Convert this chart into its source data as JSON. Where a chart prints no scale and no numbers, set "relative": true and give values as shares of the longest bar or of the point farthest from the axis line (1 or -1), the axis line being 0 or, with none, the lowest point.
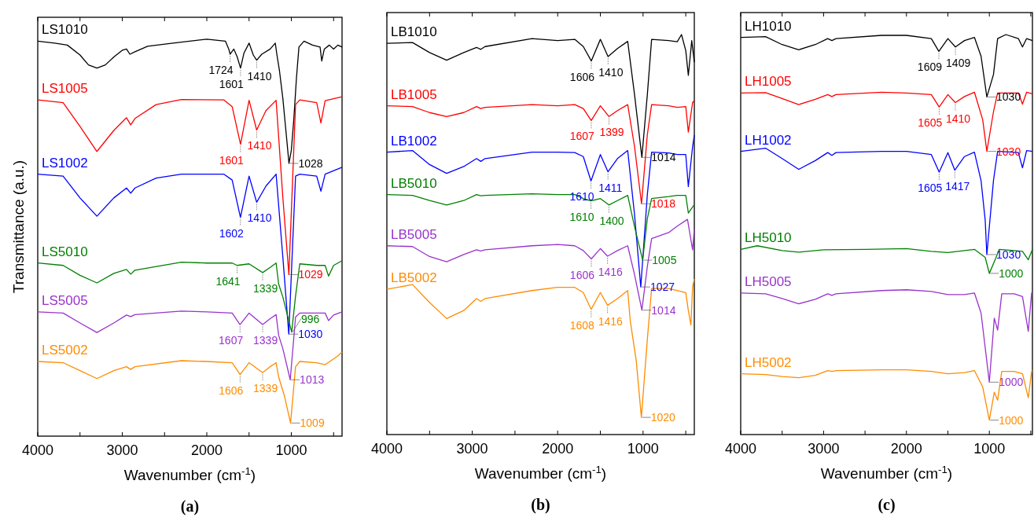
{
  "chart_data": [
    {
      "type": "line",
      "title": "(a)",
      "xlabel": "Wavenumber (cm$^{-1}$)",
      "ylabel": "Transmittance (a.u.)",
      "relative": true,
      "xlim": [
        4000,
        400
      ],
      "xticks": [
        4000,
        {
          "value": 3500,
          "label": null
        },
        3000,
        {
          "value": 2500,
          "label": null
        },
        2000,
        {
          "value": 1500,
          "label": null
        },
        1000,
        {
          "value": 500,
          "label": null
        }
      ],
      "series": [
        {
          "name": "LS1010",
          "color": "#000000",
          "x": [
            4000,
            3800,
            3650,
            3500,
            3400,
            3300,
            3200,
            3100,
            3000,
            2950,
            2910,
            2850,
            2700,
            2400,
            2000,
            1780,
            1740,
            1724,
            1680,
            1640,
            1601,
            1560,
            1500,
            1450,
            1410,
            1350,
            1250,
            1190,
            1170,
            1140,
            1100,
            1060,
            1028,
            1000,
            970,
            940,
            910,
            850,
            750,
            660,
            640,
            610,
            550,
            500,
            450,
            400
          ],
          "values": [
            0.995,
            0.99,
            0.985,
            0.96,
            0.935,
            0.927,
            0.935,
            0.955,
            0.972,
            0.975,
            0.962,
            0.968,
            0.982,
            0.99,
            1.0,
            0.995,
            0.975,
            0.962,
            0.975,
            0.955,
            0.927,
            0.965,
            0.99,
            0.96,
            0.947,
            0.962,
            0.975,
            0.99,
            0.96,
            0.92,
            0.85,
            0.76,
            0.687,
            0.72,
            0.8,
            0.9,
            0.98,
            0.995,
            0.985,
            0.98,
            0.945,
            0.975,
            0.985,
            0.975,
            0.985,
            0.98
          ]
        },
        {
          "name": "LS1005",
          "color": "#ff0000",
          "x": [
            4000,
            3700,
            3500,
            3300,
            3100,
            2950,
            2900,
            2850,
            2600,
            2300,
            1800,
            1700,
            1601,
            1500,
            1410,
            1300,
            1180,
            1100,
            1029,
            950,
            900,
            700,
            650,
            600,
            400
          ],
          "values": [
            0.847,
            0.84,
            0.78,
            0.717,
            0.77,
            0.802,
            0.784,
            0.8,
            0.835,
            0.848,
            0.847,
            0.83,
            0.735,
            0.846,
            0.771,
            0.82,
            0.846,
            0.6,
            0.407,
            0.835,
            0.847,
            0.84,
            0.789,
            0.845,
            0.855
          ]
        },
        {
          "name": "LS1002",
          "color": "#0000ff",
          "x": [
            4000,
            3700,
            3500,
            3300,
            3100,
            2950,
            2900,
            2850,
            2600,
            2300,
            1800,
            1700,
            1602,
            1500,
            1410,
            1300,
            1180,
            1100,
            1030,
            950,
            900,
            700,
            650,
            600,
            400
          ],
          "values": [
            0.66,
            0.655,
            0.6,
            0.554,
            0.6,
            0.625,
            0.612,
            0.625,
            0.65,
            0.66,
            0.66,
            0.645,
            0.551,
            0.655,
            0.589,
            0.63,
            0.66,
            0.45,
            0.257,
            0.655,
            0.66,
            0.655,
            0.617,
            0.66,
            0.677
          ]
        },
        {
          "name": "LS5010",
          "color": "#008000",
          "x": [
            4000,
            3700,
            3500,
            3300,
            3100,
            2950,
            2900,
            2850,
            2300,
            2000,
            1700,
            1641,
            1500,
            1339,
            1250,
            1180,
            1150,
            1100,
            996,
            950,
            900,
            700,
            600,
            560,
            500,
            400
          ],
          "values": [
            0.436,
            0.43,
            0.405,
            0.386,
            0.41,
            0.42,
            0.408,
            0.418,
            0.438,
            0.436,
            0.436,
            0.43,
            0.434,
            0.412,
            0.425,
            0.436,
            0.383,
            0.35,
            0.262,
            0.353,
            0.434,
            0.43,
            0.43,
            0.403,
            0.43,
            0.442
          ]
        },
        {
          "name": "LS5005",
          "color": "#9933cc",
          "x": [
            4000,
            3700,
            3500,
            3300,
            3100,
            2950,
            2900,
            2850,
            2300,
            2000,
            1700,
            1607,
            1500,
            1339,
            1250,
            1180,
            1150,
            1100,
            1013,
            950,
            900,
            700,
            600,
            560,
            500,
            400
          ],
          "values": [
            0.313,
            0.31,
            0.285,
            0.261,
            0.285,
            0.305,
            0.301,
            0.306,
            0.315,
            0.313,
            0.31,
            0.281,
            0.31,
            0.281,
            0.296,
            0.306,
            0.254,
            0.22,
            0.142,
            0.3,
            0.31,
            0.31,
            0.31,
            0.291,
            0.305,
            0.313
          ]
        },
        {
          "name": "LS5002",
          "color": "#ff8c00",
          "x": [
            4000,
            3700,
            3500,
            3300,
            3100,
            2950,
            2900,
            2850,
            2300,
            2000,
            1700,
            1606,
            1500,
            1339,
            1250,
            1180,
            1150,
            1080,
            1009,
            950,
            900,
            700,
            600,
            450,
            400
          ],
          "values": [
            0.188,
            0.185,
            0.165,
            0.145,
            0.165,
            0.175,
            0.168,
            0.175,
            0.19,
            0.188,
            0.185,
            0.155,
            0.185,
            0.16,
            0.175,
            0.185,
            0.149,
            0.1,
            0.033,
            0.175,
            0.188,
            0.185,
            0.18,
            0.202,
            0.212
          ]
        }
      ],
      "annotations": [
        {
          "text": "1724",
          "x": 1724,
          "y": 0.962
        },
        {
          "text": "1601",
          "x": 1601,
          "y": 0.927
        },
        {
          "text": "1410",
          "x": 1410,
          "y": 0.947
        },
        {
          "text": "1028",
          "x": 1028,
          "y": 0.687
        },
        {
          "text": "1601",
          "x": 1601,
          "y": 0.735
        },
        {
          "text": "1410",
          "x": 1410,
          "y": 0.771
        },
        {
          "text": "1029",
          "x": 1029,
          "y": 0.407
        },
        {
          "text": "1602",
          "x": 1602,
          "y": 0.551
        },
        {
          "text": "1410",
          "x": 1410,
          "y": 0.589
        },
        {
          "text": "1030",
          "x": 1030,
          "y": 0.257
        },
        {
          "text": "1641",
          "x": 1641,
          "y": 0.43
        },
        {
          "text": "1339",
          "x": 1339,
          "y": 0.412
        },
        {
          "text": "996",
          "x": 996,
          "y": 0.262
        },
        {
          "text": "1607",
          "x": 1607,
          "y": 0.281
        },
        {
          "text": "1339",
          "x": 1339,
          "y": 0.281
        },
        {
          "text": "1013",
          "x": 1013,
          "y": 0.142
        },
        {
          "text": "1606",
          "x": 1606,
          "y": 0.155
        },
        {
          "text": "1339",
          "x": 1339,
          "y": 0.16
        },
        {
          "text": "1009",
          "x": 1009,
          "y": 0.033
        }
      ]
    },
    {
      "type": "line",
      "title": "(b)",
      "xlabel": "Wavenumber (cm$^{-1}$)",
      "relative": true,
      "xlim": [
        4000,
        400
      ],
      "xticks": [
        4000,
        {
          "value": 3500,
          "label": null
        },
        3000,
        {
          "value": 2500,
          "label": null
        },
        2000,
        {
          "value": 1500,
          "label": null
        },
        1000,
        {
          "value": 500,
          "label": null
        }
      ],
      "series": [
        {
          "name": "LB1010",
          "color": "#000000",
          "x": [
            4000,
            3700,
            3500,
            3300,
            3100,
            2950,
            2900,
            2850,
            2300,
            2000,
            1800,
            1700,
            1606,
            1500,
            1410,
            1300,
            1180,
            1100,
            1014,
            950,
            900,
            700,
            600,
            550,
            500,
            470,
            430,
            400
          ],
          "values": [
            0.978,
            0.98,
            0.955,
            0.936,
            0.955,
            0.968,
            0.963,
            0.97,
            0.99,
            0.985,
            0.988,
            0.97,
            0.934,
            0.988,
            0.945,
            0.965,
            0.983,
            0.85,
            0.693,
            0.85,
            0.988,
            0.985,
            0.982,
            1.0,
            0.96,
            0.898,
            0.985,
            0.931
          ]
        },
        {
          "name": "LB1005",
          "color": "#ff0000",
          "x": [
            4000,
            3700,
            3500,
            3300,
            3100,
            2950,
            2900,
            2850,
            2300,
            2000,
            1800,
            1700,
            1607,
            1500,
            1399,
            1300,
            1180,
            1100,
            1018,
            950,
            900,
            700,
            600,
            500,
            470,
            420,
            400
          ],
          "values": [
            0.822,
            0.82,
            0.805,
            0.795,
            0.805,
            0.82,
            0.815,
            0.818,
            0.825,
            0.822,
            0.825,
            0.815,
            0.785,
            0.822,
            0.795,
            0.81,
            0.825,
            0.72,
            0.577,
            0.75,
            0.825,
            0.822,
            0.818,
            0.82,
            0.756,
            0.83,
            0.835
          ]
        },
        {
          "name": "LB1002",
          "color": "#0000ff",
          "x": [
            4000,
            3700,
            3500,
            3300,
            3100,
            2950,
            2900,
            2850,
            2300,
            2000,
            1800,
            1700,
            1610,
            1500,
            1411,
            1300,
            1180,
            1100,
            1027,
            950,
            900,
            700,
            600,
            500,
            470,
            420,
            400
          ],
          "values": [
            0.706,
            0.71,
            0.675,
            0.653,
            0.67,
            0.69,
            0.683,
            0.69,
            0.706,
            0.706,
            0.705,
            0.695,
            0.634,
            0.7,
            0.657,
            0.69,
            0.71,
            0.55,
            0.369,
            0.6,
            0.706,
            0.704,
            0.7,
            0.7,
            0.62,
            0.72,
            0.749
          ]
        },
        {
          "name": "LB5010",
          "color": "#008000",
          "x": [
            4000,
            3700,
            3500,
            3300,
            3100,
            2950,
            2900,
            2850,
            2300,
            2000,
            1800,
            1700,
            1610,
            1500,
            1400,
            1300,
            1180,
            1100,
            1005,
            950,
            900,
            700,
            600,
            500,
            470,
            400
          ],
          "values": [
            0.6,
            0.598,
            0.585,
            0.574,
            0.585,
            0.6,
            0.597,
            0.598,
            0.602,
            0.6,
            0.6,
            0.59,
            0.584,
            0.59,
            0.574,
            0.585,
            0.598,
            0.52,
            0.436,
            0.54,
            0.59,
            0.595,
            0.598,
            0.598,
            0.554,
            0.575
          ]
        },
        {
          "name": "LB5005",
          "color": "#9933cc",
          "x": [
            4000,
            3700,
            3500,
            3300,
            3100,
            2950,
            2900,
            2850,
            2300,
            2000,
            1800,
            1700,
            1606,
            1500,
            1416,
            1300,
            1180,
            1100,
            1014,
            950,
            900,
            700,
            600,
            480,
            420,
            400
          ],
          "values": [
            0.472,
            0.47,
            0.445,
            0.432,
            0.45,
            0.462,
            0.459,
            0.462,
            0.472,
            0.475,
            0.472,
            0.46,
            0.439,
            0.465,
            0.446,
            0.46,
            0.472,
            0.4,
            0.311,
            0.42,
            0.49,
            0.505,
            0.521,
            0.538,
            0.462,
            0.515
          ]
        },
        {
          "name": "LB5002",
          "color": "#ff8c00",
          "x": [
            4000,
            3700,
            3500,
            3300,
            3100,
            2950,
            2900,
            2850,
            2300,
            2000,
            1800,
            1700,
            1608,
            1500,
            1416,
            1300,
            1180,
            1150,
            1080,
            1020,
            950,
            900,
            700,
            500,
            470,
            440,
            420,
            400
          ],
          "values": [
            0.363,
            0.375,
            0.33,
            0.29,
            0.31,
            0.34,
            0.333,
            0.34,
            0.36,
            0.368,
            0.368,
            0.355,
            0.313,
            0.355,
            0.323,
            0.34,
            0.36,
            0.284,
            0.185,
            0.043,
            0.238,
            0.365,
            0.365,
            0.355,
            0.31,
            0.274,
            0.37,
            0.389
          ]
        }
      ],
      "annotations": [
        {
          "text": "1606",
          "x": 1606,
          "y": 0.934
        },
        {
          "text": "1410",
          "x": 1410,
          "y": 0.945
        },
        {
          "text": "1014",
          "x": 1014,
          "y": 0.693
        },
        {
          "text": "1607",
          "x": 1607,
          "y": 0.785
        },
        {
          "text": "1399",
          "x": 1399,
          "y": 0.795
        },
        {
          "text": "1018",
          "x": 1018,
          "y": 0.577
        },
        {
          "text": "1610",
          "x": 1610,
          "y": 0.634
        },
        {
          "text": "1411",
          "x": 1411,
          "y": 0.657
        },
        {
          "text": "1027",
          "x": 1027,
          "y": 0.369
        },
        {
          "text": "1610",
          "x": 1610,
          "y": 0.584
        },
        {
          "text": "1400",
          "x": 1400,
          "y": 0.574
        },
        {
          "text": "1005",
          "x": 1005,
          "y": 0.436
        },
        {
          "text": "1606",
          "x": 1606,
          "y": 0.439
        },
        {
          "text": "1416",
          "x": 1416,
          "y": 0.446
        },
        {
          "text": "1014",
          "x": 1014,
          "y": 0.311
        },
        {
          "text": "1608",
          "x": 1608,
          "y": 0.313
        },
        {
          "text": "1416",
          "x": 1416,
          "y": 0.323
        },
        {
          "text": "1020",
          "x": 1020,
          "y": 0.043
        }
      ]
    },
    {
      "type": "line",
      "title": "(c)",
      "xlabel": "Wavenumber (cm$^{-1}$)",
      "relative": true,
      "xlim": [
        4000,
        480
      ],
      "xticks": [
        4000,
        {
          "value": 3500,
          "label": null
        },
        3000,
        {
          "value": 2500,
          "label": null
        },
        2000,
        {
          "value": 1500,
          "label": null
        },
        1000,
        {
          "value": 500,
          "label": null
        }
      ],
      "series": [
        {
          "name": "LH1010",
          "color": "#000000",
          "x": [
            4000,
            3700,
            3500,
            3300,
            3100,
            2950,
            2900,
            2850,
            2300,
            2000,
            1700,
            1609,
            1500,
            1409,
            1300,
            1180,
            1100,
            1030,
            950,
            900,
            800,
            650,
            600,
            550,
            480
          ],
          "values": [
            0.993,
            0.995,
            0.975,
            0.962,
            0.975,
            0.99,
            0.985,
            0.99,
            0.998,
            0.998,
            0.99,
            0.958,
            0.99,
            0.969,
            0.985,
            0.993,
            0.946,
            0.844,
            0.9,
            0.99,
            1.0,
            0.99,
            0.969,
            0.99,
            0.985
          ]
        },
        {
          "name": "LH1005",
          "color": "#ff0000",
          "x": [
            4000,
            3700,
            3500,
            3300,
            3100,
            2950,
            2900,
            2850,
            2300,
            2000,
            1700,
            1605,
            1500,
            1410,
            1300,
            1180,
            1080,
            1030,
            950,
            900,
            650,
            600,
            550,
            480
          ],
          "values": [
            0.854,
            0.855,
            0.84,
            0.825,
            0.838,
            0.85,
            0.845,
            0.85,
            0.856,
            0.854,
            0.85,
            0.819,
            0.85,
            0.83,
            0.845,
            0.856,
            0.787,
            0.708,
            0.807,
            0.854,
            0.854,
            0.826,
            0.856,
            0.852
          ]
        },
        {
          "name": "LH1002",
          "color": "#0000ff",
          "x": [
            4000,
            3700,
            3500,
            3300,
            3100,
            2950,
            2900,
            2850,
            2300,
            2000,
            1700,
            1605,
            1500,
            1417,
            1300,
            1180,
            1100,
            1050,
            1030,
            950,
            900,
            650,
            600,
            550,
            480
          ],
          "values": [
            0.708,
            0.716,
            0.69,
            0.663,
            0.685,
            0.705,
            0.698,
            0.705,
            0.708,
            0.708,
            0.7,
            0.656,
            0.705,
            0.661,
            0.695,
            0.706,
            0.635,
            0.536,
            0.45,
            0.635,
            0.708,
            0.705,
            0.667,
            0.71,
            0.708
          ]
        },
        {
          "name": "LH5010",
          "color": "#008000",
          "x": [
            4000,
            3800,
            3500,
            3300,
            3000,
            2500,
            2000,
            1700,
            1500,
            1300,
            1180,
            1050,
            1000,
            930,
            880,
            700,
            600,
            530,
            480
          ],
          "values": [
            0.463,
            0.472,
            0.46,
            0.456,
            0.462,
            0.463,
            0.465,
            0.458,
            0.455,
            0.46,
            0.463,
            0.443,
            0.403,
            0.437,
            0.463,
            0.46,
            0.458,
            0.437,
            0.463
          ]
        },
        {
          "name": "LH5005",
          "color": "#9933cc",
          "x": [
            4000,
            3700,
            3500,
            3300,
            3100,
            2950,
            2900,
            2850,
            2300,
            2000,
            1700,
            1500,
            1300,
            1180,
            1100,
            1000,
            940,
            900,
            850,
            700,
            600,
            530,
            490,
            480
          ],
          "values": [
            0.354,
            0.352,
            0.34,
            0.327,
            0.338,
            0.352,
            0.348,
            0.352,
            0.36,
            0.362,
            0.358,
            0.35,
            0.35,
            0.354,
            0.304,
            0.131,
            0.291,
            0.261,
            0.352,
            0.352,
            0.345,
            0.258,
            0.354,
            0.356
          ]
        },
        {
          "name": "LH5002",
          "color": "#ff8c00",
          "x": [
            4000,
            3700,
            3500,
            3300,
            3100,
            2950,
            2900,
            2850,
            2300,
            2000,
            1700,
            1500,
            1300,
            1180,
            1080,
            1000,
            940,
            900,
            850,
            700,
            600,
            530,
            490,
            480
          ],
          "values": [
            0.152,
            0.15,
            0.145,
            0.142,
            0.148,
            0.16,
            0.158,
            0.16,
            0.162,
            0.162,
            0.158,
            0.152,
            0.155,
            0.16,
            0.119,
            0.036,
            0.106,
            0.086,
            0.158,
            0.158,
            0.152,
            0.092,
            0.158,
            0.16
          ]
        }
      ],
      "annotations": [
        {
          "text": "1609",
          "x": 1609,
          "y": 0.958
        },
        {
          "text": "1409",
          "x": 1409,
          "y": 0.969
        },
        {
          "text": "1030",
          "x": 1030,
          "y": 0.844
        },
        {
          "text": "1605",
          "x": 1605,
          "y": 0.819
        },
        {
          "text": "1410",
          "x": 1410,
          "y": 0.83
        },
        {
          "text": "1030",
          "x": 1030,
          "y": 0.708
        },
        {
          "text": "1605",
          "x": 1605,
          "y": 0.656
        },
        {
          "text": "1417",
          "x": 1417,
          "y": 0.661
        },
        {
          "text": "1030",
          "x": 1030,
          "y": 0.45
        },
        {
          "text": "1000",
          "x": 1000,
          "y": 0.403
        },
        {
          "text": "1000",
          "x": 1000,
          "y": 0.131
        },
        {
          "text": "1000",
          "x": 1000,
          "y": 0.036
        }
      ]
    }
  ]
}
